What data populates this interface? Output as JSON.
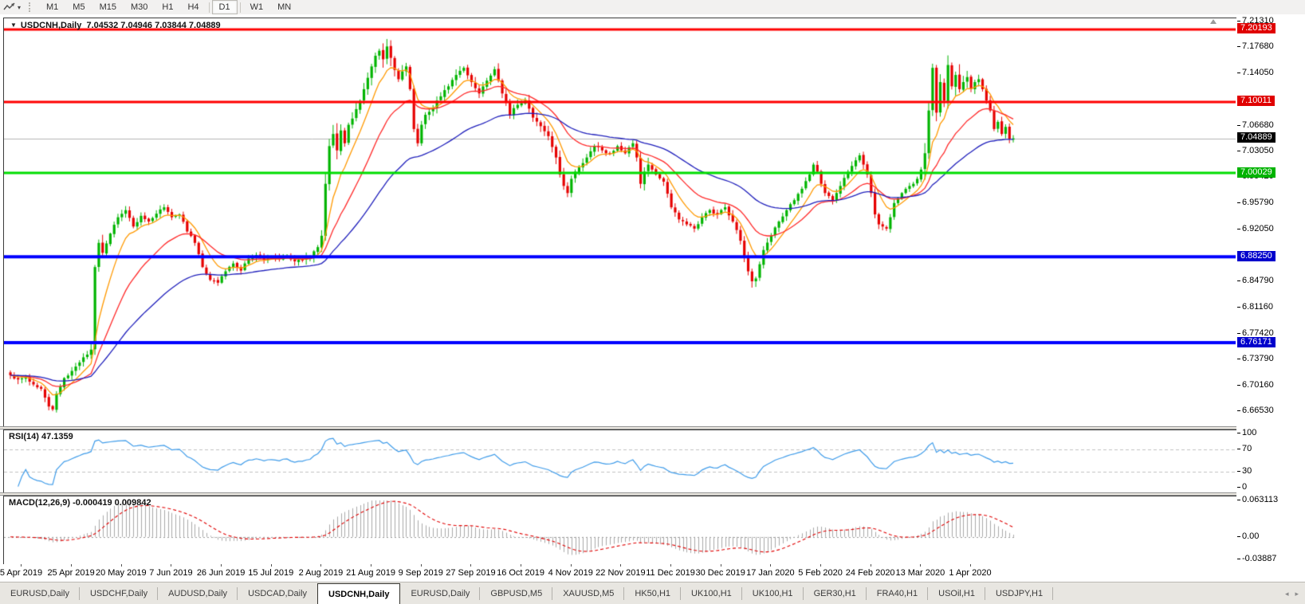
{
  "toolbar": {
    "timeframes": [
      "M1",
      "M5",
      "M15",
      "M30",
      "H1",
      "H4",
      "D1",
      "W1",
      "MN"
    ],
    "selected": "D1",
    "indicator_icon": "chart-tool",
    "caret": "▾"
  },
  "window_title": {
    "symbol": "USDCNH,Daily",
    "ohlc": "7.04532 7.04946 7.03844 7.04889",
    "dropdown_glyph": "▼"
  },
  "chart_data": {
    "type": "candlestick",
    "symbol": "USDCNH",
    "timeframe": "Daily",
    "title": "USDCNH,Daily  7.04532 7.04946 7.03844 7.04889",
    "price_axis": {
      "max": 7.2131,
      "min": 6.6554,
      "ticks": [
        "7.21310",
        "7.17680",
        "7.14050",
        "7.06680",
        "7.03050",
        "6.99420",
        "6.95790",
        "6.92050",
        "6.84790",
        "6.81160",
        "6.77420",
        "6.73790",
        "6.70160",
        "6.66530"
      ],
      "badges": [
        {
          "value": "7.20193",
          "color": "#e00000"
        },
        {
          "value": "7.10011",
          "color": "#e00000"
        },
        {
          "value": "7.04889",
          "color": "#000000"
        },
        {
          "value": "7.00029",
          "color": "#00b300"
        },
        {
          "value": "6.88250",
          "color": "#0000cc"
        },
        {
          "value": "6.76171",
          "color": "#0000cc"
        }
      ]
    },
    "levels": [
      {
        "price": 7.20193,
        "color": "#ff0000",
        "width": 3
      },
      {
        "price": 7.10011,
        "color": "#ff0000",
        "width": 3
      },
      {
        "price": 7.00029,
        "color": "#00dd00",
        "width": 3
      },
      {
        "price": 6.8825,
        "color": "#0000ff",
        "width": 4
      },
      {
        "price": 6.76171,
        "color": "#0000ff",
        "width": 4
      }
    ],
    "current_price_line": {
      "price": 7.04889,
      "color": "#b4b4b4",
      "width": 1
    },
    "date_ticks": [
      "5 Apr 2019",
      "25 Apr 2019",
      "20 May 2019",
      "7 Jun 2019",
      "26 Jun 2019",
      "15 Jul 2019",
      "2 Aug 2019",
      "21 Aug 2019",
      "9 Sep 2019",
      "27 Sep 2019",
      "16 Oct 2019",
      "4 Nov 2019",
      "22 Nov 2019",
      "11 Dec 2019",
      "30 Dec 2019",
      "17 Jan 2020",
      "5 Feb 2020",
      "24 Feb 2020",
      "13 Mar 2020",
      "1 Apr 2020"
    ],
    "candles": {
      "count": 262,
      "seed": 7,
      "up_color": "#00b400",
      "down_color": "#e60000",
      "last_close": 7.04889,
      "price_anchors": [
        [
          0,
          6.716
        ],
        [
          2,
          6.71
        ],
        [
          4,
          6.713
        ],
        [
          6,
          6.703
        ],
        [
          8,
          6.697
        ],
        [
          10,
          6.672
        ],
        [
          11,
          6.668
        ],
        [
          12,
          6.69
        ],
        [
          14,
          6.712
        ],
        [
          16,
          6.722
        ],
        [
          18,
          6.734
        ],
        [
          20,
          6.745
        ],
        [
          21,
          6.752
        ],
        [
          22,
          6.868
        ],
        [
          23,
          6.902
        ],
        [
          24,
          6.888
        ],
        [
          26,
          6.915
        ],
        [
          28,
          6.938
        ],
        [
          30,
          6.948
        ],
        [
          32,
          6.925
        ],
        [
          34,
          6.94
        ],
        [
          36,
          6.932
        ],
        [
          38,
          6.943
        ],
        [
          40,
          6.952
        ],
        [
          42,
          6.938
        ],
        [
          44,
          6.942
        ],
        [
          46,
          6.918
        ],
        [
          48,
          6.902
        ],
        [
          50,
          6.868
        ],
        [
          52,
          6.85
        ],
        [
          54,
          6.846
        ],
        [
          56,
          6.862
        ],
        [
          58,
          6.873
        ],
        [
          60,
          6.863
        ],
        [
          62,
          6.88
        ],
        [
          64,
          6.885
        ],
        [
          66,
          6.878
        ],
        [
          68,
          6.882
        ],
        [
          70,
          6.879
        ],
        [
          72,
          6.884
        ],
        [
          74,
          6.876
        ],
        [
          76,
          6.878
        ],
        [
          78,
          6.882
        ],
        [
          80,
          6.896
        ],
        [
          81,
          6.912
        ],
        [
          82,
          6.985
        ],
        [
          83,
          7.038
        ],
        [
          84,
          7.055
        ],
        [
          85,
          7.032
        ],
        [
          86,
          7.06
        ],
        [
          87,
          7.042
        ],
        [
          88,
          7.068
        ],
        [
          90,
          7.09
        ],
        [
          92,
          7.118
        ],
        [
          94,
          7.15
        ],
        [
          95,
          7.165
        ],
        [
          96,
          7.172
        ],
        [
          97,
          7.16
        ],
        [
          98,
          7.178
        ],
        [
          99,
          7.162
        ],
        [
          100,
          7.145
        ],
        [
          101,
          7.132
        ],
        [
          103,
          7.15
        ],
        [
          104,
          7.118
        ],
        [
          105,
          7.062
        ],
        [
          106,
          7.042
        ],
        [
          107,
          7.068
        ],
        [
          108,
          7.082
        ],
        [
          110,
          7.092
        ],
        [
          112,
          7.108
        ],
        [
          114,
          7.122
        ],
        [
          116,
          7.138
        ],
        [
          118,
          7.148
        ],
        [
          120,
          7.128
        ],
        [
          122,
          7.112
        ],
        [
          124,
          7.13
        ],
        [
          126,
          7.146
        ],
        [
          128,
          7.112
        ],
        [
          130,
          7.082
        ],
        [
          132,
          7.096
        ],
        [
          134,
          7.102
        ],
        [
          136,
          7.078
        ],
        [
          138,
          7.066
        ],
        [
          140,
          7.052
        ],
        [
          142,
          7.022
        ],
        [
          143,
          6.998
        ],
        [
          144,
          6.982
        ],
        [
          145,
          6.972
        ],
        [
          146,
          6.992
        ],
        [
          148,
          7.008
        ],
        [
          150,
          7.022
        ],
        [
          152,
          7.038
        ],
        [
          154,
          7.032
        ],
        [
          156,
          7.028
        ],
        [
          158,
          7.038
        ],
        [
          160,
          7.028
        ],
        [
          162,
          7.042
        ],
        [
          163,
          7.022
        ],
        [
          164,
          6.985
        ],
        [
          165,
          7.002
        ],
        [
          166,
          7.012
        ],
        [
          168,
          6.998
        ],
        [
          170,
          6.988
        ],
        [
          172,
          6.952
        ],
        [
          174,
          6.935
        ],
        [
          176,
          6.928
        ],
        [
          178,
          6.922
        ],
        [
          180,
          6.938
        ],
        [
          182,
          6.948
        ],
        [
          184,
          6.942
        ],
        [
          186,
          6.952
        ],
        [
          188,
          6.932
        ],
        [
          190,
          6.905
        ],
        [
          191,
          6.882
        ],
        [
          192,
          6.862
        ],
        [
          193,
          6.848
        ],
        [
          194,
          6.852
        ],
        [
          195,
          6.872
        ],
        [
          196,
          6.892
        ],
        [
          198,
          6.912
        ],
        [
          200,
          6.932
        ],
        [
          202,
          6.948
        ],
        [
          204,
          6.962
        ],
        [
          206,
          6.978
        ],
        [
          208,
          6.998
        ],
        [
          209,
          7.012
        ],
        [
          210,
          7.002
        ],
        [
          211,
          6.985
        ],
        [
          212,
          6.972
        ],
        [
          214,
          6.962
        ],
        [
          216,
          6.982
        ],
        [
          218,
          7.002
        ],
        [
          220,
          7.018
        ],
        [
          221,
          7.025
        ],
        [
          222,
          7.012
        ],
        [
          223,
          6.998
        ],
        [
          224,
          6.972
        ],
        [
          225,
          6.942
        ],
        [
          226,
          6.928
        ],
        [
          228,
          6.922
        ],
        [
          229,
          6.938
        ],
        [
          230,
          6.958
        ],
        [
          232,
          6.972
        ],
        [
          234,
          6.982
        ],
        [
          236,
          6.992
        ],
        [
          237,
          7.005
        ],
        [
          238,
          7.028
        ],
        [
          239,
          7.088
        ],
        [
          240,
          7.148
        ],
        [
          241,
          7.085
        ],
        [
          242,
          7.128
        ],
        [
          243,
          7.102
        ],
        [
          244,
          7.152
        ],
        [
          245,
          7.122
        ],
        [
          246,
          7.138
        ],
        [
          247,
          7.118
        ],
        [
          248,
          7.128
        ],
        [
          249,
          7.135
        ],
        [
          250,
          7.118
        ],
        [
          251,
          7.128
        ],
        [
          252,
          7.132
        ],
        [
          253,
          7.118
        ],
        [
          254,
          7.102
        ],
        [
          255,
          7.088
        ],
        [
          256,
          7.062
        ],
        [
          257,
          7.072
        ],
        [
          258,
          7.055
        ],
        [
          259,
          7.065
        ],
        [
          260,
          7.048
        ],
        [
          261,
          7.04889
        ]
      ],
      "vol_profile": [
        [
          0,
          20,
          0.009
        ],
        [
          21,
          24,
          0.016
        ],
        [
          25,
          76,
          0.008
        ],
        [
          77,
          81,
          0.011
        ],
        [
          82,
          87,
          0.02
        ],
        [
          88,
          93,
          0.013
        ],
        [
          94,
          99,
          0.019
        ],
        [
          100,
          107,
          0.014
        ],
        [
          108,
          140,
          0.011
        ],
        [
          141,
          147,
          0.013
        ],
        [
          148,
          163,
          0.009
        ],
        [
          164,
          166,
          0.013
        ],
        [
          167,
          189,
          0.009
        ],
        [
          190,
          197,
          0.012
        ],
        [
          198,
          237,
          0.009
        ],
        [
          238,
          249,
          0.021
        ],
        [
          250,
          261,
          0.011
        ]
      ]
    },
    "moving_averages": [
      {
        "period": 8,
        "color": "#ff9900"
      },
      {
        "period": 21,
        "color": "#ff2a2a"
      },
      {
        "period": 50,
        "color": "#1f1fbb"
      }
    ],
    "rsi": {
      "label": "RSI(14) 47.1359",
      "period": 14,
      "value": "47.1359",
      "ticks": [
        "100",
        "70",
        "30",
        "0"
      ],
      "tick_values": [
        100,
        70,
        30,
        0
      ],
      "levels": [
        70,
        30
      ],
      "color": "#3e9be9",
      "level_color": "#c0c0c0"
    },
    "macd": {
      "label": "MACD(12,26,9) -0.000419 0.009842",
      "fast": 12,
      "slow": 26,
      "signal": 9,
      "main_value": "-0.000419",
      "signal_value": "0.009842",
      "ticks": [
        "0.063113",
        "0.00",
        "-0.03887"
      ],
      "tick_values": [
        0.063113,
        0.0,
        -0.03887
      ],
      "max": 0.063113,
      "min": -0.03887,
      "hist_color": "#a9a9a9",
      "signal_color": "#e00000",
      "zero_color": "#999999"
    }
  },
  "tabs": {
    "items": [
      "EURUSD,Daily",
      "USDCHF,Daily",
      "AUDUSD,Daily",
      "USDCAD,Daily",
      "USDCNH,Daily",
      "EURUSD,Daily",
      "GBPUSD,M5",
      "XAUUSD,M5",
      "HK50,H1",
      "UK100,H1",
      "UK100,H1",
      "GER30,H1",
      "FRA40,H1",
      "USOil,H1",
      "USDJPY,H1"
    ],
    "active_index": 4,
    "scroll_left": "◂",
    "scroll_right": "▸"
  }
}
